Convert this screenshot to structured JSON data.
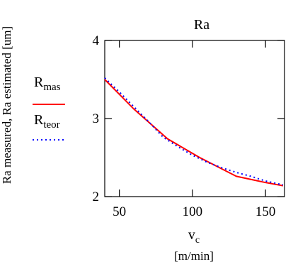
{
  "chart_data": {
    "type": "line",
    "title": "Ra",
    "ylabel": "Ra measured, Ra estimated [um]",
    "xlabel": {
      "symbol": "v",
      "subscript": "c",
      "unit": "[m/min]"
    },
    "xlim": [
      40,
      163
    ],
    "ylim": [
      2,
      4
    ],
    "xticks": [
      50,
      100,
      150
    ],
    "yticks": [
      2,
      3,
      4
    ],
    "grid": false,
    "legend": {
      "placement": "left",
      "entries": [
        {
          "base": "R",
          "sub": "mas",
          "color": "#ff0000",
          "style": "solid"
        },
        {
          "base": "R",
          "sub": "teor",
          "color": "#0000ff",
          "style": "dotted"
        }
      ]
    },
    "series": [
      {
        "key": "mas",
        "color": "#ff0000",
        "style": "solid",
        "points": [
          [
            40,
            3.5
          ],
          [
            60,
            3.12
          ],
          [
            83,
            2.74
          ],
          [
            105,
            2.5
          ],
          [
            130,
            2.26
          ],
          [
            150,
            2.18
          ],
          [
            162,
            2.14
          ]
        ]
      },
      {
        "key": "teor",
        "color": "#0000ff",
        "style": "dotted",
        "points": [
          [
            40,
            3.52
          ],
          [
            50,
            3.34
          ],
          [
            60,
            3.15
          ],
          [
            70,
            2.96
          ],
          [
            80,
            2.76
          ],
          [
            90,
            2.64
          ],
          [
            100,
            2.53
          ],
          [
            110,
            2.44
          ],
          [
            120,
            2.37
          ],
          [
            130,
            2.31
          ],
          [
            140,
            2.26
          ],
          [
            150,
            2.2
          ],
          [
            162,
            2.15
          ]
        ]
      }
    ]
  }
}
